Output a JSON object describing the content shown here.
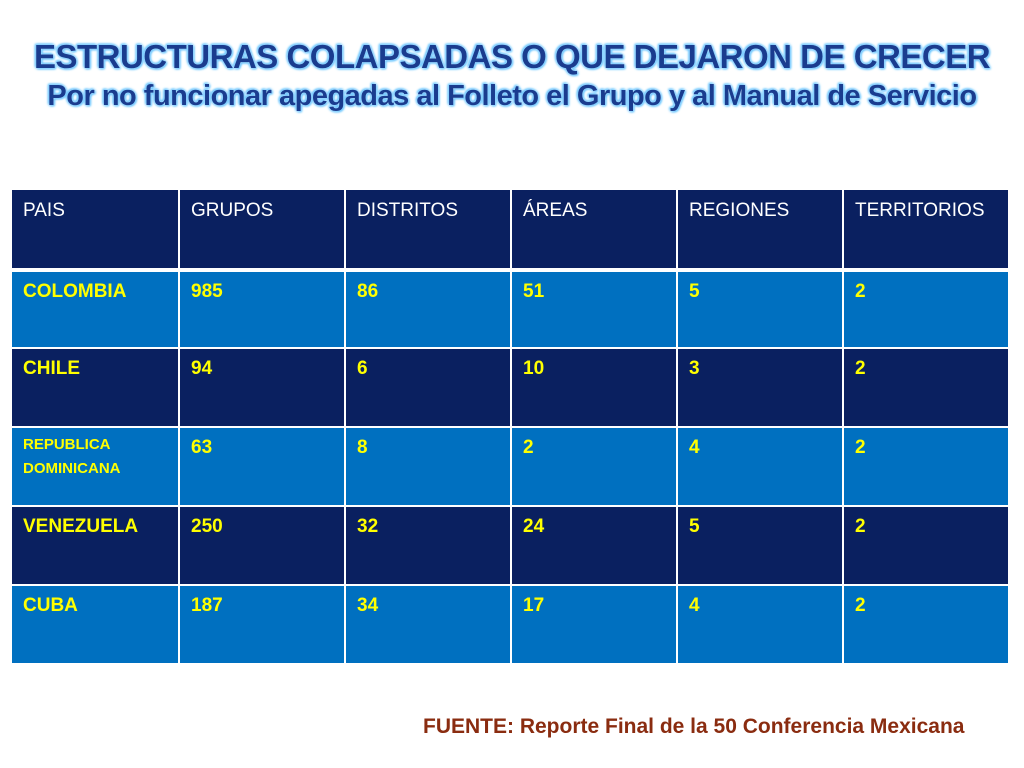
{
  "title": "ESTRUCTURAS  COLAPSADAS O QUE DEJARON DE CRECER",
  "subtitle": "Por no funcionar apegadas al Folleto el Grupo y al Manual de Servicio",
  "table": {
    "headers": [
      "PAIS",
      "GRUPOS",
      "DISTRITOS",
      "ÁREAS",
      "REGIONES",
      "TERRITORIOS"
    ],
    "rows": [
      [
        "COLOMBIA",
        "985",
        "86",
        "51",
        "5",
        "2"
      ],
      [
        "CHILE",
        "94",
        "6",
        "10",
        "3",
        "2"
      ],
      [
        "REPUBLICA DOMINICANA",
        "63",
        "8",
        "2",
        "4",
        "2"
      ],
      [
        "VENEZUELA",
        "250",
        "32",
        "24",
        "5",
        "2"
      ],
      [
        "CUBA",
        "187",
        "34",
        "17",
        "4",
        "2"
      ]
    ]
  },
  "source": "FUENTE: Reporte Final de la 50  Conferencia Mexicana",
  "colors": {
    "header_bg": "#0a2060",
    "row_light": "#0070c0",
    "row_dark": "#0a2060",
    "cell_text": "#ffff00",
    "title_text": "#1a3c8f",
    "source_text": "#8a2c10"
  }
}
